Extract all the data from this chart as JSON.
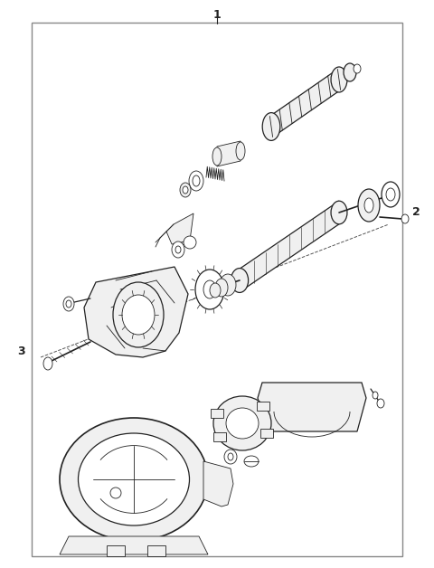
{
  "bg_color": "#ffffff",
  "border_color": "#888888",
  "line_color": "#222222",
  "label_color": "#000000",
  "fig_width": 4.8,
  "fig_height": 6.28,
  "dpi": 100,
  "lw_main": 0.9,
  "lw_thin": 0.6,
  "lw_thick": 1.2
}
